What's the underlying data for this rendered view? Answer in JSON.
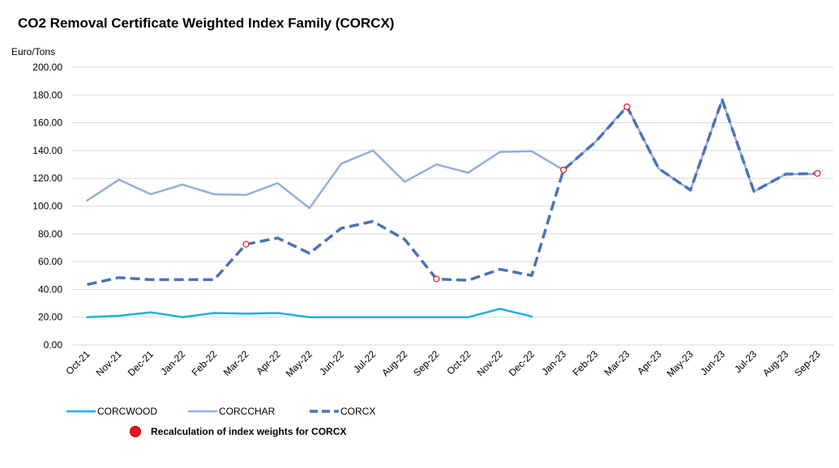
{
  "chart_data": {
    "type": "line",
    "title": "CO2 Removal Certificate Weighted Index Family (CORCX)",
    "ylabel": "Euro/Tons",
    "ylim": [
      0,
      200
    ],
    "yticks": [
      "0.00",
      "20.00",
      "40.00",
      "60.00",
      "80.00",
      "100.00",
      "120.00",
      "140.00",
      "160.00",
      "180.00",
      "200.00"
    ],
    "grid": true,
    "legend_placement": "bottom-left",
    "categories": [
      "Oct-21",
      "Nov-21",
      "Dec-21",
      "Jan-22",
      "Feb-22",
      "Mar-22",
      "Apr-22",
      "May-22",
      "Jun-22",
      "Jul-22",
      "Aug-22",
      "Sep-22",
      "Oct-22",
      "Nov-22",
      "Dec-22",
      "Jan-23",
      "Feb-23",
      "Mar-23",
      "Apr-23",
      "May-23",
      "Jun-23",
      "Jul-23",
      "Aug-23",
      "Sep-23"
    ],
    "series": [
      {
        "name": "CORCWOOD",
        "color": "#1fb0e0",
        "style": "solid",
        "values": [
          20,
          21,
          23.5,
          20,
          23,
          22.5,
          23,
          20,
          20,
          20,
          20,
          20,
          20,
          26,
          20.5,
          null,
          null,
          null,
          null,
          null,
          null,
          null,
          null,
          null
        ]
      },
      {
        "name": "CORCCHAR",
        "color": "#94aed8",
        "style": "solid",
        "values": [
          104,
          119,
          108.5,
          115.5,
          108.5,
          108,
          116.5,
          98.5,
          130.5,
          140,
          117.5,
          130,
          124,
          139,
          139.5,
          126,
          146,
          172,
          127,
          111.5,
          176.5,
          110.5,
          123,
          123
        ]
      },
      {
        "name": "CORCX",
        "color": "#4a72b8",
        "style": "dashed",
        "values": [
          43.5,
          48.5,
          47,
          47,
          47,
          72.5,
          77,
          66,
          84,
          89,
          76,
          47.5,
          46.5,
          54.5,
          50,
          126,
          146,
          171.5,
          127,
          111.5,
          176.5,
          110.5,
          123,
          123.5
        ]
      }
    ],
    "markers": {
      "name": "Recalculation of index weights for CORCX",
      "color": "#e8141e",
      "points": [
        {
          "x": "Mar-22",
          "y": 72.5
        },
        {
          "x": "Sep-22",
          "y": 47.5
        },
        {
          "x": "Jan-23",
          "y": 126
        },
        {
          "x": "Mar-23",
          "y": 171.5
        },
        {
          "x": "Sep-23",
          "y": 123.5
        }
      ]
    }
  }
}
